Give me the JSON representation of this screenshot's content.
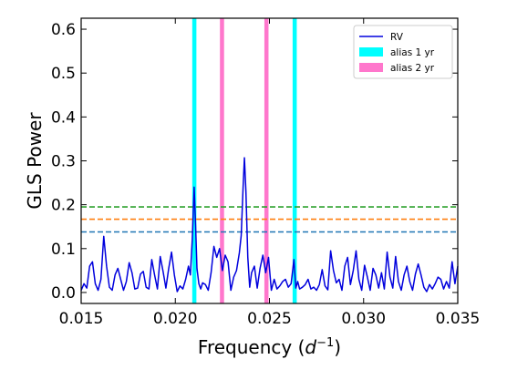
{
  "chart_data": {
    "type": "line",
    "xlabel_main": "Frequency (",
    "xlabel_sup": "−1",
    "xlabel_var": "d",
    "xlabel_close": ")",
    "ylabel": "GLS Power",
    "xlim": [
      0.015,
      0.035
    ],
    "ylim": [
      -0.025,
      0.625
    ],
    "x_ticks": [
      0.015,
      0.02,
      0.025,
      0.03,
      0.035
    ],
    "x_tick_labels": [
      "0.015",
      "0.020",
      "0.025",
      "0.030",
      "0.035"
    ],
    "y_ticks": [
      0.0,
      0.1,
      0.2,
      0.3,
      0.4,
      0.5,
      0.6
    ],
    "y_tick_labels": [
      "0.0",
      "0.1",
      "0.2",
      "0.3",
      "0.4",
      "0.5",
      "0.6"
    ],
    "grid": false,
    "legend_position": "top-right",
    "legend": [
      {
        "label": "RV",
        "kind": "line",
        "color": "#0000dd"
      },
      {
        "label": "alias 1 yr",
        "kind": "band",
        "color": "#00ffff"
      },
      {
        "label": "alias 2 yr",
        "kind": "band",
        "color": "#ff77cc"
      }
    ],
    "bands": [
      {
        "series": "alias 1 yr",
        "x_min": 0.0209,
        "x_max": 0.02112,
        "color": "#00ffff"
      },
      {
        "series": "alias 2 yr",
        "x_min": 0.02237,
        "x_max": 0.02259,
        "color": "#ff77cc"
      },
      {
        "series": "alias 2 yr",
        "x_min": 0.02473,
        "x_max": 0.02495,
        "color": "#ff77cc"
      },
      {
        "series": "alias 1 yr",
        "x_min": 0.02623,
        "x_max": 0.02645,
        "color": "#00ffff"
      }
    ],
    "hlines": [
      {
        "y": 0.195,
        "color": "#2ca02c",
        "style": "dashed"
      },
      {
        "y": 0.167,
        "color": "#ff7f0e",
        "style": "dashed"
      },
      {
        "y": 0.138,
        "color": "#1f77b4",
        "style": "dashed"
      }
    ],
    "series": [
      {
        "name": "RV",
        "color": "#0000dd",
        "x": [
          0.015,
          0.01515,
          0.0153,
          0.01545,
          0.0156,
          0.01575,
          0.0159,
          0.01605,
          0.0162,
          0.01635,
          0.0165,
          0.01665,
          0.0168,
          0.01695,
          0.0171,
          0.01725,
          0.0174,
          0.01755,
          0.0177,
          0.01785,
          0.018,
          0.01815,
          0.0183,
          0.01845,
          0.0186,
          0.01875,
          0.0189,
          0.01905,
          0.0192,
          0.01935,
          0.0195,
          0.01965,
          0.0198,
          0.01995,
          0.0201,
          0.02025,
          0.0204,
          0.02055,
          0.0207,
          0.0208,
          0.0209,
          0.021,
          0.02108,
          0.02115,
          0.02125,
          0.02135,
          0.02145,
          0.0216,
          0.02175,
          0.0219,
          0.02205,
          0.0222,
          0.02235,
          0.0225,
          0.02265,
          0.0228,
          0.02295,
          0.0231,
          0.02325,
          0.0234,
          0.0235,
          0.0236,
          0.02367,
          0.02375,
          0.02385,
          0.02395,
          0.02405,
          0.0242,
          0.02435,
          0.0245,
          0.02465,
          0.0248,
          0.02495,
          0.0251,
          0.02525,
          0.0254,
          0.02555,
          0.0257,
          0.02585,
          0.026,
          0.02615,
          0.0263,
          0.0264,
          0.0265,
          0.0266,
          0.02675,
          0.0269,
          0.02705,
          0.0272,
          0.02735,
          0.0275,
          0.02765,
          0.0278,
          0.02795,
          0.0281,
          0.02825,
          0.0284,
          0.02855,
          0.0287,
          0.02885,
          0.029,
          0.02915,
          0.0293,
          0.02945,
          0.0296,
          0.02975,
          0.0299,
          0.03005,
          0.0302,
          0.03035,
          0.0305,
          0.03065,
          0.0308,
          0.03095,
          0.0311,
          0.03125,
          0.0314,
          0.03155,
          0.0317,
          0.03185,
          0.032,
          0.03215,
          0.0323,
          0.03245,
          0.0326,
          0.03275,
          0.0329,
          0.03305,
          0.0332,
          0.03335,
          0.0335,
          0.03365,
          0.0338,
          0.03395,
          0.0341,
          0.03425,
          0.0344,
          0.03455,
          0.0347,
          0.03485,
          0.035
        ],
        "y": [
          0.005,
          0.02,
          0.01,
          0.06,
          0.07,
          0.02,
          0.005,
          0.03,
          0.128,
          0.06,
          0.012,
          0.005,
          0.04,
          0.055,
          0.03,
          0.005,
          0.025,
          0.068,
          0.045,
          0.008,
          0.01,
          0.042,
          0.048,
          0.012,
          0.008,
          0.075,
          0.04,
          0.008,
          0.082,
          0.048,
          0.01,
          0.055,
          0.092,
          0.04,
          0.002,
          0.015,
          0.008,
          0.03,
          0.06,
          0.04,
          0.12,
          0.24,
          0.15,
          0.055,
          0.02,
          0.008,
          0.022,
          0.018,
          0.005,
          0.045,
          0.105,
          0.08,
          0.1,
          0.05,
          0.085,
          0.07,
          0.005,
          0.035,
          0.05,
          0.09,
          0.13,
          0.24,
          0.307,
          0.23,
          0.08,
          0.012,
          0.045,
          0.06,
          0.01,
          0.055,
          0.085,
          0.045,
          0.08,
          0.005,
          0.03,
          0.008,
          0.015,
          0.025,
          0.03,
          0.012,
          0.02,
          0.075,
          0.01,
          0.025,
          0.008,
          0.012,
          0.018,
          0.03,
          0.008,
          0.012,
          0.005,
          0.018,
          0.052,
          0.015,
          0.006,
          0.095,
          0.05,
          0.022,
          0.03,
          0.005,
          0.06,
          0.08,
          0.018,
          0.05,
          0.095,
          0.03,
          0.005,
          0.062,
          0.035,
          0.005,
          0.055,
          0.04,
          0.01,
          0.045,
          0.008,
          0.092,
          0.035,
          0.01,
          0.082,
          0.025,
          0.005,
          0.04,
          0.06,
          0.025,
          0.005,
          0.042,
          0.065,
          0.04,
          0.012,
          0.002,
          0.018,
          0.008,
          0.02,
          0.035,
          0.03,
          0.008,
          0.025,
          0.01,
          0.07,
          0.02,
          0.06
        ]
      }
    ]
  }
}
